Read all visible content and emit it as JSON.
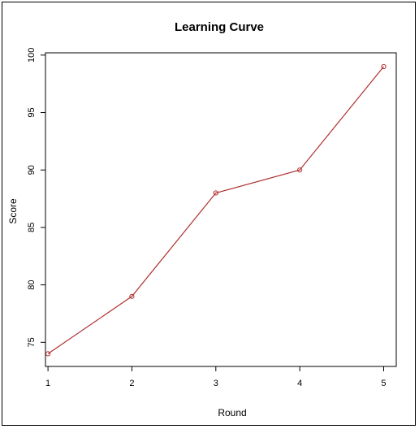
{
  "chart_data": {
    "type": "line",
    "title": "Learning Curve",
    "xlabel": "Round",
    "ylabel": "Score",
    "x": [
      1,
      2,
      3,
      4,
      5
    ],
    "series": [
      {
        "values": [
          74,
          79,
          88,
          90,
          99
        ],
        "color": "#b03030",
        "marker": "circle"
      }
    ],
    "xticks": [
      "1",
      "2",
      "3",
      "4",
      "5"
    ],
    "yticks": [
      "75",
      "80",
      "85",
      "90",
      "95",
      "100"
    ],
    "xlim": [
      0.97,
      5.15
    ],
    "ylim": [
      72.9,
      100.2
    ],
    "grid": false,
    "legend": "none"
  }
}
